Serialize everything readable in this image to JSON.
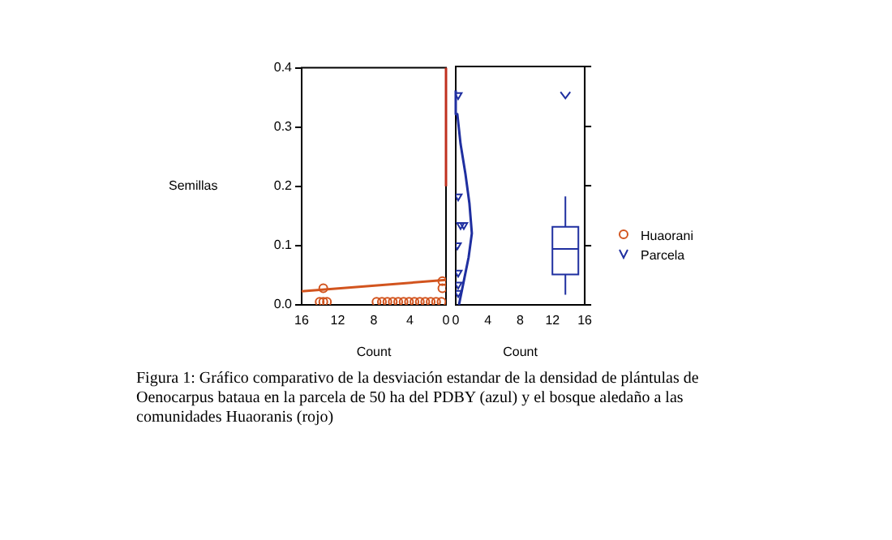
{
  "chart_data": [
    {
      "type": "scatter",
      "ylabel": "Semillas",
      "xlabel": "Count",
      "xlim": [
        16,
        0
      ],
      "xticks": [
        16,
        12,
        8,
        4,
        0
      ],
      "ylim": [
        0,
        0.4
      ],
      "yticks": [
        {
          "value": 0,
          "label": "0.0"
        },
        {
          "value": 0.1,
          "label": "0.1"
        },
        {
          "value": 0.2,
          "label": "0.2"
        },
        {
          "value": 0.3,
          "label": "0.3"
        },
        {
          "value": 0.4,
          "label": "0.4"
        }
      ],
      "legend": "right",
      "annotations": [
        "Figura 1: Gráfico comparativo de la desviación estandar de la densidad de plántulas de Oenocarpus bataua en la parcela de 50 ha del PDBY (azul) y el bosque aledaño a las comunidades Huaoranis (rojo)"
      ],
      "series": [
        {
          "name": "Huaorani",
          "marker": "circle",
          "color": "#d2541e",
          "x": [
            0.5,
            1.1,
            1.7,
            2.3,
            2.9,
            3.5,
            4.1,
            4.7,
            5.3,
            5.9,
            6.5,
            7.1,
            7.7,
            13.2,
            13.6,
            14.0,
            13.6,
            0.4,
            0.4
          ],
          "values": [
            0.005,
            0.005,
            0.005,
            0.005,
            0.005,
            0.005,
            0.005,
            0.005,
            0.005,
            0.005,
            0.005,
            0.005,
            0.005,
            0.005,
            0.005,
            0.005,
            0.028,
            0.028,
            0.04
          ]
        },
        {
          "type": "line",
          "color": "#d2541e",
          "x": [
            16,
            0
          ],
          "values": [
            0.023,
            0.042
          ]
        },
        {
          "type": "line",
          "color": "#c0301e",
          "x": [
            0,
            0
          ],
          "values": [
            0.2,
            0.4
          ]
        }
      ]
    },
    {
      "type": "scatter",
      "xlabel": "Count",
      "xlim": [
        0,
        16
      ],
      "xticks": [
        0,
        4,
        8,
        12,
        16
      ],
      "ylim": [
        0,
        0.4
      ],
      "yticks": [
        {
          "value": 0,
          "label": null
        },
        {
          "value": 0.1,
          "label": null
        },
        {
          "value": 0.2,
          "label": null
        },
        {
          "value": 0.3,
          "label": null
        },
        {
          "value": 0.4,
          "label": null
        }
      ],
      "tick_labels": "x",
      "legend": "right",
      "series": [
        {
          "name": "Parcela",
          "marker": "triangle",
          "color": "#1f2fa0",
          "x": [
            0.3,
            0.3,
            0.3,
            0.2,
            0.6,
            1.0,
            0.3,
            0.3
          ],
          "values": [
            0.02,
            0.034,
            0.054,
            0.1,
            0.134,
            0.134,
            0.182,
            0.352
          ]
        },
        {
          "type": "line",
          "color": "#1f2fa0",
          "x": [
            0.4,
            1.0,
            1.6,
            2.0,
            1.7,
            1.2,
            0.6,
            0.2,
            0
          ],
          "values": [
            0,
            0.04,
            0.08,
            0.12,
            0.17,
            0.22,
            0.27,
            0.32,
            0.36
          ]
        },
        {
          "type": "box",
          "color": "#1f2fa0",
          "x": [
            13.6
          ],
          "boxes": [
            {
              "low": 0.017,
              "q1": 0.051,
              "median": 0.094,
              "q3": 0.131,
              "high": 0.182,
              "outliers": [
                0.352
              ]
            }
          ]
        }
      ]
    }
  ]
}
